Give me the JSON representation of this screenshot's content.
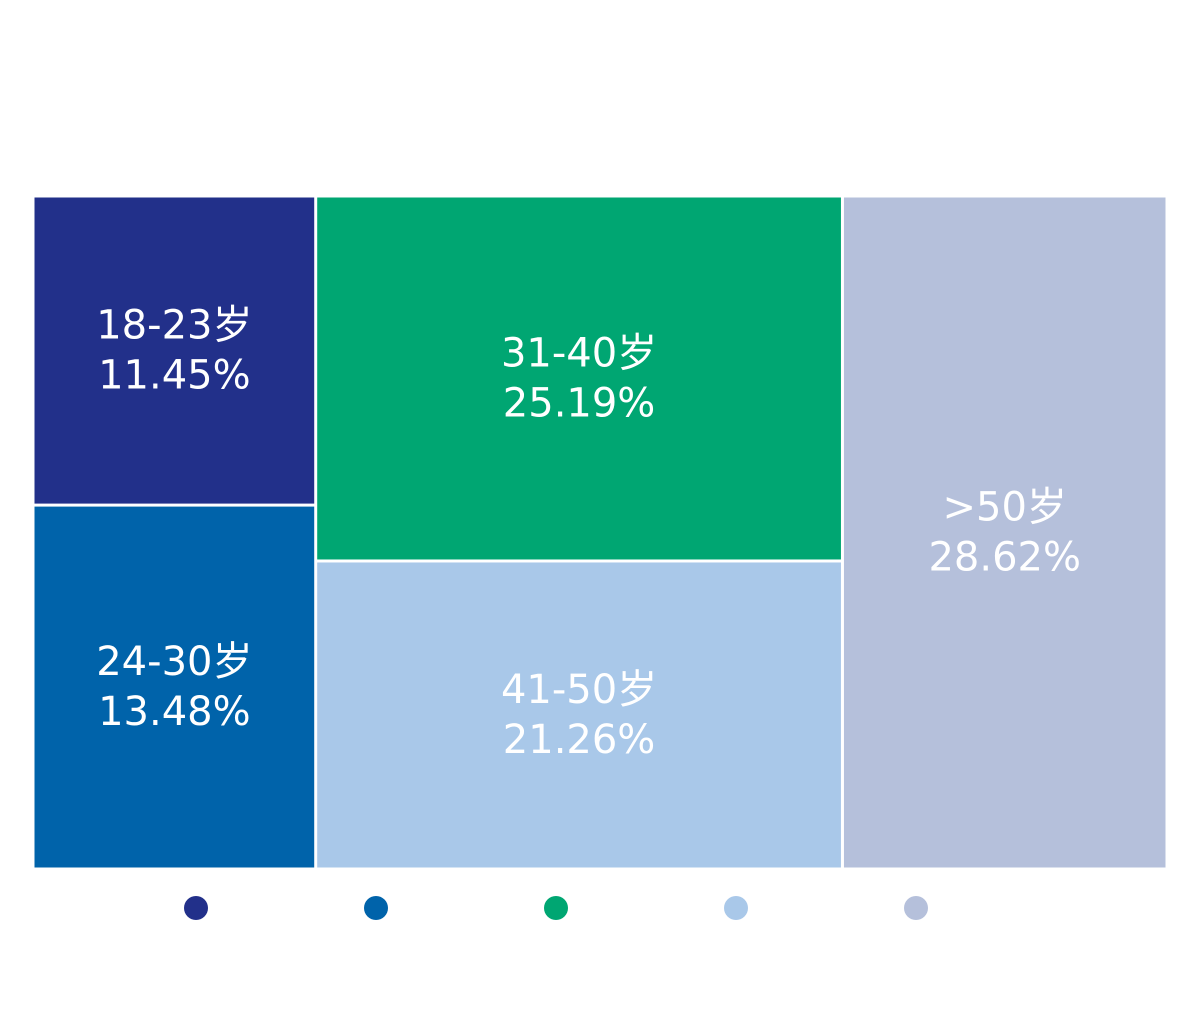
{
  "chart_data": {
    "type": "treemap",
    "title": "",
    "unit": "%",
    "categories": [
      "18-23岁",
      "24-30岁",
      "31-40岁",
      "41-50岁",
      ">50岁"
    ],
    "values": [
      11.45,
      13.48,
      25.19,
      21.26,
      28.62
    ],
    "value_labels": [
      "11.45%",
      "13.48%",
      "25.19%",
      "21.26%",
      "28.62%"
    ],
    "colors": [
      "#22308a",
      "#0063aa",
      "#00a672",
      "#a9c8e9",
      "#b5c0db"
    ],
    "legend": {
      "position": "bottom",
      "show_text": false
    }
  }
}
